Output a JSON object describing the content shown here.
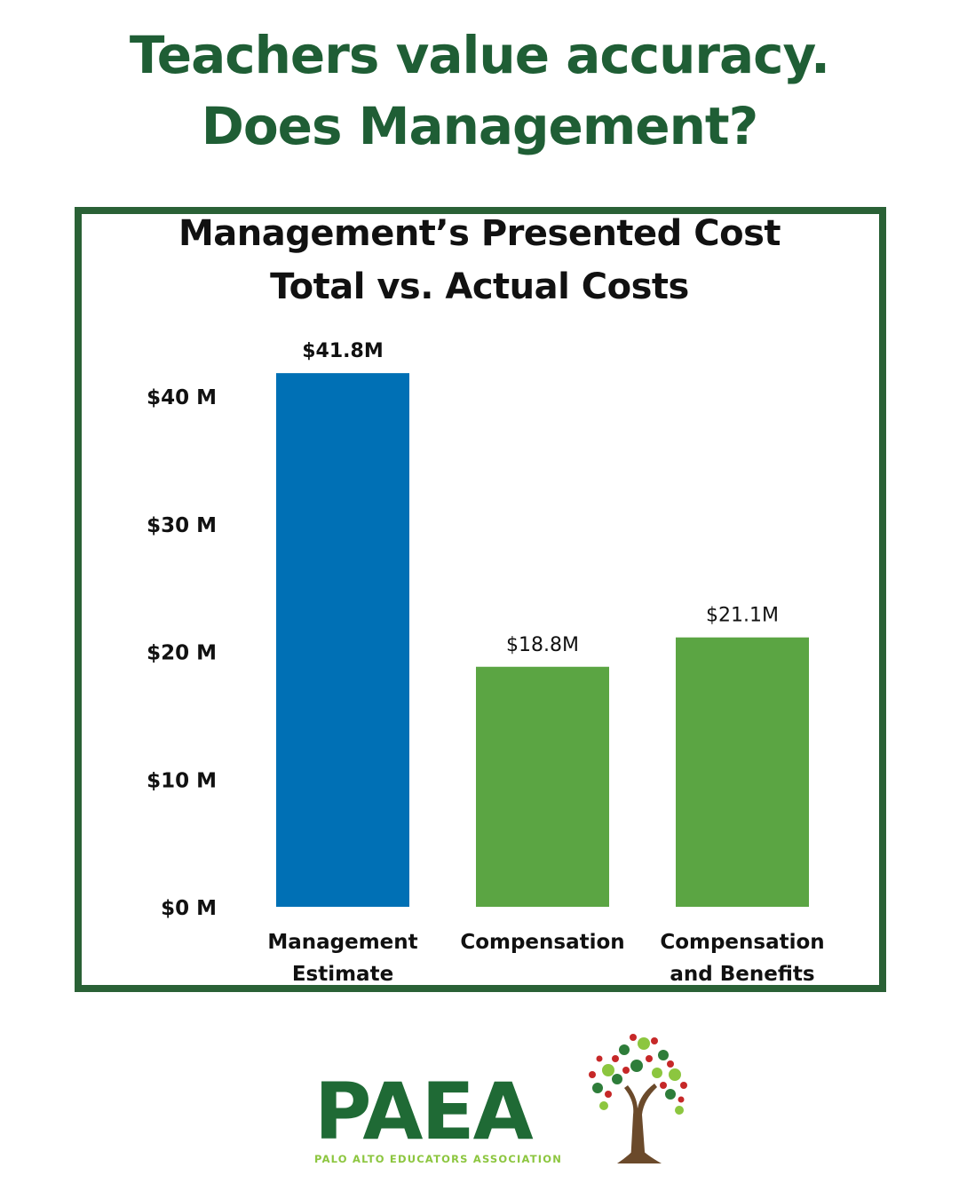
{
  "headline": {
    "line1": "Teachers value accuracy.",
    "line2": "Does Management?",
    "color": "#1f5e35"
  },
  "chart_data": {
    "type": "bar",
    "title_line1": "Management’s Presented Cost",
    "title_line2": "Total vs. Actual Costs",
    "categories": [
      "Management Estimate",
      "Compensation",
      "Compensation and Benefits"
    ],
    "category_lines": [
      [
        "Management",
        "Estimate"
      ],
      [
        "Compensation"
      ],
      [
        "Compensation",
        "and Benefits"
      ]
    ],
    "values": [
      41.8,
      18.8,
      21.1
    ],
    "value_labels": [
      "$41.8M",
      "$18.8M",
      "$21.1M"
    ],
    "colors": [
      "#0070b5",
      "#5ba543",
      "#5ba543"
    ],
    "ylim": [
      0,
      40
    ],
    "yticks": [
      0,
      10,
      20,
      30,
      40
    ],
    "ytick_labels": [
      "$0 M",
      "$10 M",
      "$20 M",
      "$30 M",
      "$40 M"
    ],
    "xlabel": "",
    "ylabel": "",
    "grid": false,
    "legend": "none"
  },
  "logo": {
    "name": "PAEA",
    "subtitle": "PALO ALTO EDUCATORS ASSOCIATION",
    "icon": "tree-of-hands-icon"
  }
}
